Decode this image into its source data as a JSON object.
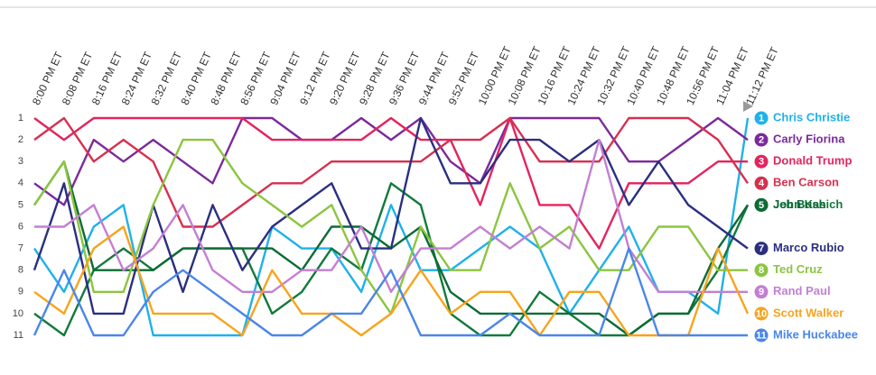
{
  "chart_data": {
    "type": "bump",
    "categories": [
      "8:00 PM ET",
      "8:08 PM ET",
      "8:16 PM ET",
      "8:24 PM ET",
      "8:32 PM ET",
      "8:40 PM ET",
      "8:48 PM ET",
      "8:56 PM ET",
      "9:04 PM ET",
      "9:12 PM ET",
      "9:20 PM ET",
      "9:28 PM ET",
      "9:36 PM ET",
      "9:44 PM ET",
      "9:52 PM ET",
      "10:00 PM ET",
      "10:08 PM ET",
      "10:16 PM ET",
      "10:24 PM ET",
      "10:32 PM ET",
      "10:40 PM ET",
      "10:48 PM ET",
      "10:56 PM ET",
      "11:04 PM ET",
      "11:12 PM ET"
    ],
    "ylim": [
      1,
      11
    ],
    "yticks": [
      1,
      2,
      3,
      4,
      5,
      6,
      7,
      8,
      9,
      10,
      11
    ],
    "inverted": true,
    "series": [
      {
        "name": "Chris Christie",
        "color": "#1fb1ea",
        "values": [
          7,
          9,
          6,
          5,
          11,
          11,
          11,
          11,
          6,
          7,
          7,
          9,
          5,
          8,
          8,
          7,
          6,
          7,
          10,
          8,
          6,
          9,
          9,
          10,
          1
        ]
      },
      {
        "name": "Carly Fiorina",
        "color": "#7b2a9c",
        "values": [
          4,
          5,
          2,
          3,
          2,
          3,
          4,
          1,
          1,
          2,
          2,
          1,
          2,
          1,
          3,
          4,
          1,
          1,
          1,
          1,
          3,
          3,
          2,
          1,
          2
        ]
      },
      {
        "name": "Donald Trump",
        "color": "#e3245e",
        "values": [
          1,
          2,
          1,
          1,
          1,
          1,
          1,
          1,
          2,
          2,
          2,
          2,
          1,
          2,
          2,
          5,
          1,
          5,
          5,
          7,
          4,
          4,
          4,
          3,
          3
        ]
      },
      {
        "name": "Ben Carson",
        "color": "#d6304f",
        "values": [
          2,
          1,
          3,
          2,
          3,
          6,
          6,
          5,
          4,
          4,
          3,
          3,
          3,
          3,
          2,
          2,
          1,
          3,
          3,
          3,
          1,
          1,
          1,
          2,
          4
        ]
      },
      {
        "name": "John Kasich",
        "color": "#127a3c",
        "values": [
          10,
          11,
          8,
          7,
          8,
          7,
          7,
          7,
          10,
          9,
          7,
          8,
          4,
          5,
          10,
          11,
          11,
          9,
          10,
          11,
          11,
          10,
          10,
          8,
          5
        ]
      },
      {
        "name": "Jeb Bush",
        "color": "#0d6b35",
        "values": [
          5,
          3,
          8,
          8,
          8,
          7,
          7,
          7,
          7,
          8,
          6,
          6,
          7,
          6,
          9,
          10,
          10,
          10,
          10,
          10,
          11,
          10,
          10,
          7,
          5
        ]
      },
      {
        "name": "Marco Rubio",
        "color": "#2b2f80",
        "values": [
          8,
          4,
          10,
          10,
          5,
          9,
          5,
          8,
          6,
          5,
          4,
          7,
          7,
          1,
          4,
          4,
          2,
          2,
          3,
          2,
          5,
          3,
          5,
          6,
          7
        ]
      },
      {
        "name": "Ted Cruz",
        "color": "#8cc540",
        "values": [
          5,
          3,
          9,
          9,
          5,
          2,
          2,
          4,
          5,
          6,
          5,
          8,
          10,
          6,
          8,
          8,
          4,
          7,
          6,
          8,
          8,
          6,
          6,
          8,
          8
        ]
      },
      {
        "name": "Rand Paul",
        "color": "#c37fd3",
        "values": [
          6,
          6,
          5,
          8,
          7,
          5,
          8,
          9,
          9,
          8,
          8,
          6,
          9,
          7,
          7,
          6,
          7,
          6,
          7,
          2,
          7,
          9,
          9,
          9,
          9
        ]
      },
      {
        "name": "Scott Walker",
        "color": "#f7a41d",
        "values": [
          9,
          10,
          7,
          6,
          10,
          10,
          10,
          11,
          8,
          10,
          10,
          11,
          10,
          8,
          10,
          9,
          9,
          11,
          9,
          9,
          11,
          11,
          11,
          7,
          10
        ]
      },
      {
        "name": "Mike Huckabee",
        "color": "#4a86e8",
        "values": [
          11,
          8,
          11,
          11,
          9,
          8,
          9,
          10,
          11,
          11,
          10,
          10,
          8,
          11,
          11,
          11,
          10,
          11,
          11,
          11,
          7,
          11,
          11,
          11,
          11
        ]
      }
    ]
  }
}
